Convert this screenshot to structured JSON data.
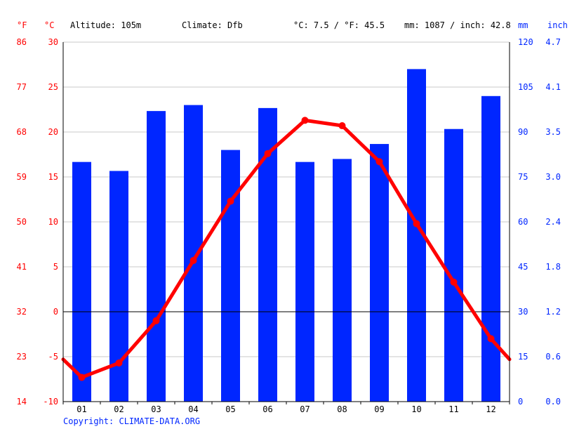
{
  "header": {
    "altitude": "Altitude: 105m",
    "climate": "Climate: Dfb",
    "avg_temp": "°C: 7.5 / °F: 45.5",
    "precip": "mm: 1087 / inch: 42.8"
  },
  "unit_labels": {
    "fahrenheit": "°F",
    "celsius": "°C",
    "mm": "mm",
    "inch": "inch"
  },
  "copyright": "Copyright: CLIMATE-DATA.ORG",
  "colors": {
    "precip_bar": "#0026ff",
    "temperature_line": "#ff0000",
    "temp_axis_text": "#ff0000",
    "precip_axis_text": "#0026ff",
    "grid": "#c8c8c8",
    "zero_line": "#000000"
  },
  "chart_data": {
    "type": "bar+line",
    "categories": [
      "01",
      "02",
      "03",
      "04",
      "05",
      "06",
      "07",
      "08",
      "09",
      "10",
      "11",
      "12"
    ],
    "series": [
      {
        "name": "mm",
        "type": "bar",
        "axis": "right",
        "values": [
          80,
          77,
          97,
          99,
          84,
          98,
          80,
          81,
          86,
          111,
          91,
          102
        ]
      },
      {
        "name": "°C",
        "type": "line",
        "axis": "left",
        "values": [
          -7.3,
          -5.7,
          -1.0,
          5.7,
          12.3,
          17.6,
          21.3,
          20.7,
          16.7,
          9.8,
          3.3,
          -3.0
        ],
        "edge_values": [
          -5.3,
          -5.3
        ]
      }
    ],
    "axes": {
      "celsius_ticks": [
        "30",
        "25",
        "20",
        "15",
        "10",
        "5",
        "0",
        "-5",
        "-10"
      ],
      "fahrenheit_ticks": [
        "86",
        "77",
        "68",
        "59",
        "50",
        "41",
        "32",
        "23",
        "14"
      ],
      "mm_ticks": [
        "120",
        "105",
        "90",
        "75",
        "60",
        "45",
        "30",
        "15",
        "0"
      ],
      "inch_ticks": [
        "4.7",
        "4.1",
        "3.5",
        "3.0",
        "2.4",
        "1.8",
        "1.2",
        "0.6",
        "0.0"
      ]
    },
    "ylim_celsius": [
      -10,
      30
    ],
    "ylim_mm": [
      0,
      120
    ],
    "grid": true
  }
}
